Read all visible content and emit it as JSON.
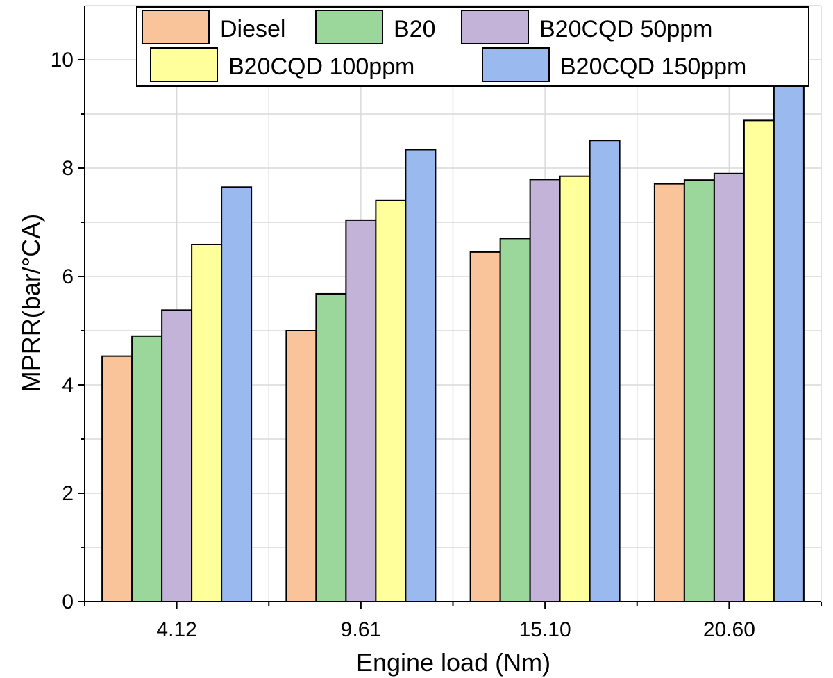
{
  "chart_data": {
    "type": "bar",
    "title": "",
    "xlabel": "Engine load (Nm)",
    "ylabel": "MPRR(bar/°CA)",
    "categories": [
      "4.12",
      "9.61",
      "15.10",
      "20.60"
    ],
    "ylim": [
      0,
      11
    ],
    "yticks": [
      0,
      2,
      4,
      6,
      8,
      10
    ],
    "grid": true,
    "legend_position": "top",
    "series": [
      {
        "name": "Diesel",
        "color": "#f9c49a",
        "values": [
          4.53,
          5.0,
          6.45,
          7.71
        ]
      },
      {
        "name": "B20",
        "color": "#9bd79b",
        "values": [
          4.9,
          5.68,
          6.7,
          7.78
        ]
      },
      {
        "name": "B20CQD 50ppm",
        "color": "#c3b3d8",
        "values": [
          5.38,
          7.04,
          7.79,
          7.9
        ]
      },
      {
        "name": "B20CQD 100ppm",
        "color": "#ffff9c",
        "values": [
          6.59,
          7.4,
          7.85,
          8.88
        ]
      },
      {
        "name": "B20CQD 150ppm",
        "color": "#9ab9ef",
        "values": [
          7.65,
          8.34,
          8.51,
          9.53
        ]
      }
    ]
  }
}
